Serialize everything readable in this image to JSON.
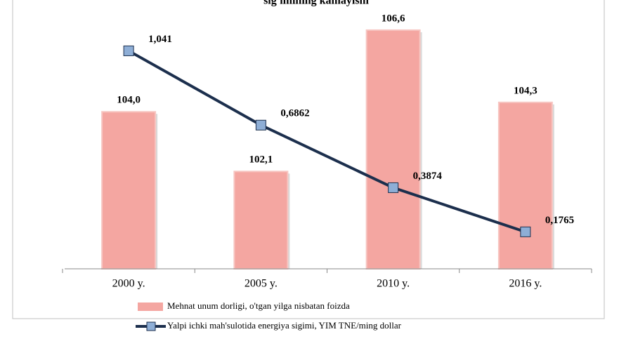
{
  "chart_data": {
    "type": "bar+line",
    "title": "sig'imining kamayishi",
    "categories": [
      "2000 y.",
      "2005 y.",
      "2010 y.",
      "2016 y."
    ],
    "series": [
      {
        "name": "Mehnat unum dorligi, o'tgan yilga nisbatan foizda",
        "type": "bar",
        "color": "#f4a6a1",
        "values": [
          104.0,
          102.1,
          106.6,
          104.3
        ],
        "value_labels": [
          "104,0",
          "102,1",
          "106,6",
          "104,3"
        ]
      },
      {
        "name": "Yalpi ichki mah'sulotida energiya sigimi,  YIM TNE/ming dollar",
        "type": "line",
        "axis": "y2",
        "color": "#1c2f4d",
        "marker_color": "#8eaed6",
        "values": [
          1.041,
          0.6862,
          0.3874,
          0.1765
        ],
        "value_labels": [
          "1,041",
          "0,6862",
          "0,3874",
          "0,1765"
        ]
      }
    ],
    "ylim": [
      99,
      107
    ],
    "y2lim": [
      0,
      1.2
    ],
    "legend": "bottom"
  }
}
